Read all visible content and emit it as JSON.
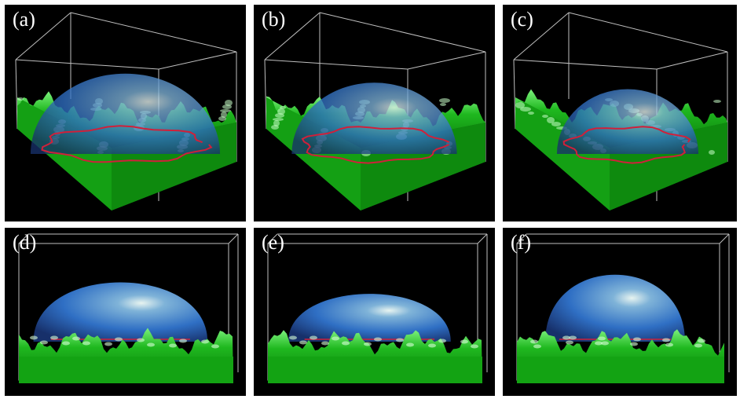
{
  "figure": {
    "panels": [
      {
        "id": "a",
        "label": "(a)",
        "view": "perspective",
        "drop_height": 0.62,
        "contact_width": 0.78
      },
      {
        "id": "b",
        "label": "(b)",
        "view": "perspective",
        "drop_height": 0.55,
        "contact_width": 0.66
      },
      {
        "id": "c",
        "label": "(c)",
        "view": "perspective",
        "drop_height": 0.5,
        "contact_width": 0.56
      },
      {
        "id": "d",
        "label": "(d)",
        "view": "side",
        "drop_height": 0.62,
        "contact_width": 0.78
      },
      {
        "id": "e",
        "label": "(e)",
        "view": "side",
        "drop_height": 0.5,
        "contact_width": 0.72
      },
      {
        "id": "f",
        "label": "(f)",
        "view": "side",
        "drop_height": 0.7,
        "contact_width": 0.62
      }
    ],
    "colors": {
      "background": "#000000",
      "surface": "#1fb81f",
      "surface_dark": "#0a7a0a",
      "droplet": "#2f6fc4",
      "contact_line": "#d0203a",
      "box_edge": "#bfbfbf",
      "separator": "#ffffff"
    }
  }
}
